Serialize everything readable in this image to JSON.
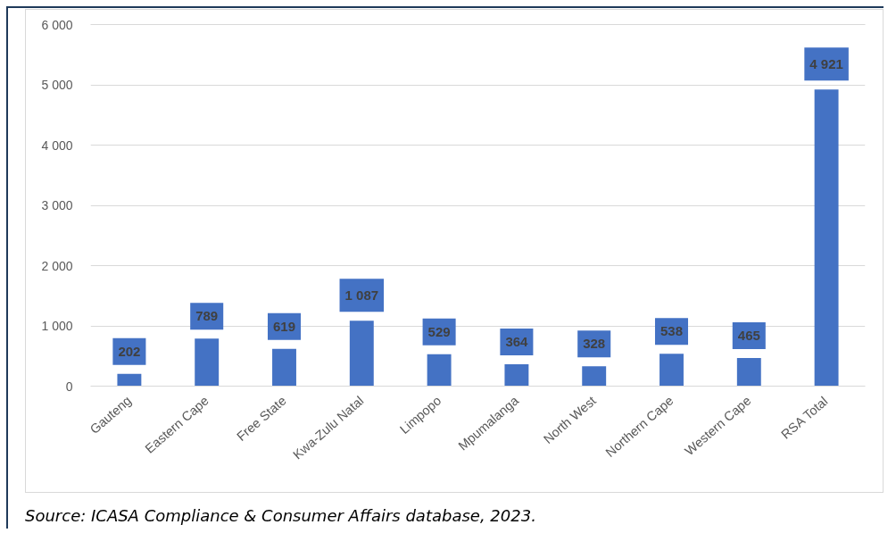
{
  "chart_data": {
    "type": "bar",
    "categories": [
      "Gauteng",
      "Eastern Cape",
      "Free State",
      "Kwa-Zulu Natal",
      "Limpopo",
      "Mpumalanga",
      "North West",
      "Northern Cape",
      "Western Cape",
      "RSA Total"
    ],
    "values": [
      202,
      789,
      619,
      1087,
      529,
      364,
      328,
      538,
      465,
      4921
    ],
    "color": "#4472c4",
    "value_labels": [
      "202",
      "789",
      "619",
      "1 087",
      "529",
      "364",
      "328",
      "538",
      "465",
      "4 921"
    ],
    "ylim": [
      0,
      6000
    ],
    "yticks": [
      0,
      {
        "value": 1000,
        "label": "1 000"
      },
      {
        "value": 2000,
        "label": "2 000"
      },
      {
        "value": 3000,
        "label": "3 000"
      },
      {
        "value": 4000,
        "label": "4 000"
      },
      {
        "value": 5000,
        "label": "5 000"
      },
      {
        "value": 6000,
        "label": "6 000"
      }
    ],
    "grid": "y",
    "annotations": [
      "Source: ICASA Compliance & Consumer Affairs database, 2023."
    ]
  }
}
